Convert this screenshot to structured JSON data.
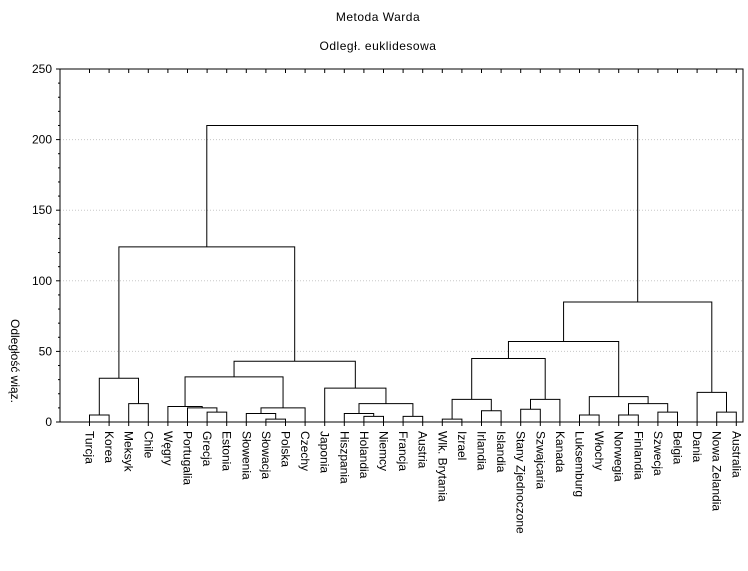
{
  "chart_data": {
    "type": "dendrogram",
    "title": "Metoda Warda",
    "subtitle": "Odległ. euklidesowa",
    "ylabel": "Odległość wiąz.",
    "xlabel": "",
    "ylim": [
      0,
      250
    ],
    "yticks": [
      0,
      50,
      100,
      150,
      200,
      250
    ],
    "grid": true,
    "leaves": [
      "Turcja",
      "Korea",
      "Meksyk",
      "Chile",
      "Węgry",
      "Portugalia",
      "Grecja",
      "Estonia",
      "Słowenia",
      "Słowacja",
      "Polska",
      "Czechy",
      "Japonia",
      "Hiszpania",
      "Holandia",
      "Niemcy",
      "Francja",
      "Austria",
      "Wlk. Brytania",
      "Izrael",
      "Irlandia",
      "Islandia",
      "Stany Zjednoczone",
      "Szwajcaria",
      "Kanada",
      "Luksemburg",
      "Włochy",
      "Norwegia",
      "Finlandia",
      "Szwecja",
      "Belgia",
      "Dania",
      "Nowa Zelandia",
      "Australia"
    ],
    "merges": [
      {
        "left": "L0",
        "right": "L1",
        "height": 5
      },
      {
        "left": "L2",
        "right": "L3",
        "height": 13
      },
      {
        "left": "N0",
        "right": "N1",
        "height": 31
      },
      {
        "left": "L9",
        "right": "L10",
        "height": 2
      },
      {
        "left": "L8",
        "right": "N3",
        "height": 6
      },
      {
        "left": "N4",
        "right": "L11",
        "height": 10
      },
      {
        "left": "L6",
        "right": "L7",
        "height": 7
      },
      {
        "left": "L5",
        "right": "N6",
        "height": 10
      },
      {
        "left": "L4",
        "right": "N7",
        "height": 11
      },
      {
        "left": "N8",
        "right": "N5",
        "height": 32
      },
      {
        "left": "L14",
        "right": "L15",
        "height": 4
      },
      {
        "left": "L13",
        "right": "N10",
        "height": 6
      },
      {
        "left": "L16",
        "right": "L17",
        "height": 4
      },
      {
        "left": "N11",
        "right": "N12",
        "height": 13
      },
      {
        "left": "L12",
        "right": "N13",
        "height": 24
      },
      {
        "left": "N9",
        "right": "N14",
        "height": 43
      },
      {
        "left": "N2",
        "right": "N15",
        "height": 124
      },
      {
        "left": "L18",
        "right": "L19",
        "height": 2
      },
      {
        "left": "L20",
        "right": "L21",
        "height": 8
      },
      {
        "left": "N17",
        "right": "N18",
        "height": 16
      },
      {
        "left": "L22",
        "right": "L23",
        "height": 9
      },
      {
        "left": "N20",
        "right": "L24",
        "height": 16
      },
      {
        "left": "N19",
        "right": "N21",
        "height": 45
      },
      {
        "left": "L25",
        "right": "L26",
        "height": 5
      },
      {
        "left": "L27",
        "right": "L28",
        "height": 5
      },
      {
        "left": "L29",
        "right": "L30",
        "height": 7
      },
      {
        "left": "N24",
        "right": "N25",
        "height": 13
      },
      {
        "left": "N23",
        "right": "N26",
        "height": 18
      },
      {
        "left": "N22",
        "right": "N27",
        "height": 57
      },
      {
        "left": "L32",
        "right": "L33",
        "height": 7
      },
      {
        "left": "L31",
        "right": "N29",
        "height": 21
      },
      {
        "left": "N28",
        "right": "N30",
        "height": 85
      },
      {
        "left": "N16",
        "right": "N31",
        "height": 210
      }
    ]
  }
}
